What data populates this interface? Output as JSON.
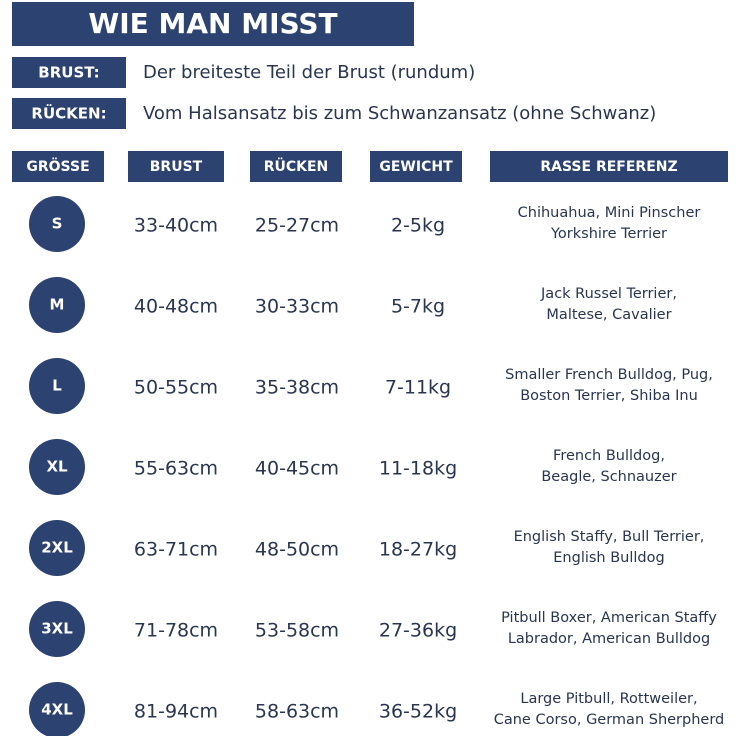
{
  "header": {
    "title": "WIE MAN MISST"
  },
  "measures": [
    {
      "label": "BRUST:",
      "text": "Der breiteste Teil der Brust (rundum)"
    },
    {
      "label": "RÜCKEN:",
      "text": "Vom Halsansatz bis zum Schwanzansatz (ohne Schwanz)"
    }
  ],
  "table": {
    "headers": [
      "GRÖSSE",
      "BRUST",
      "RÜCKEN",
      "GEWICHT",
      "RASSE REFERENZ"
    ],
    "rows": [
      [
        "S",
        "33-40cm",
        "25-27cm",
        "2-5kg",
        [
          "Chihuahua, Mini Pinscher",
          "Yorkshire Terrier"
        ]
      ],
      [
        "M",
        "40-48cm",
        "30-33cm",
        "5-7kg",
        [
          "Jack Russel Terrier,",
          "Maltese, Cavalier"
        ]
      ],
      [
        "L",
        "50-55cm",
        "35-38cm",
        "7-11kg",
        [
          "Smaller French Bulldog, Pug,",
          "Boston Terrier, Shiba Inu"
        ]
      ],
      [
        "XL",
        "55-63cm",
        "40-45cm",
        "11-18kg",
        [
          "French Bulldog,",
          "Beagle, Schnauzer"
        ]
      ],
      [
        "2XL",
        "63-71cm",
        "48-50cm",
        "18-27kg",
        [
          "English Staffy, Bull Terrier,",
          "English Bulldog"
        ]
      ],
      [
        "3XL",
        "71-78cm",
        "53-58cm",
        "27-36kg",
        [
          "Pitbull Boxer, American Staffy",
          "Labrador, American Bulldog"
        ]
      ],
      [
        "4XL",
        "81-94cm",
        "58-63cm",
        "36-52kg",
        [
          "Large Pitbull, Rottweiler,",
          "Cane Corso, German Sherpherd"
        ]
      ]
    ]
  }
}
